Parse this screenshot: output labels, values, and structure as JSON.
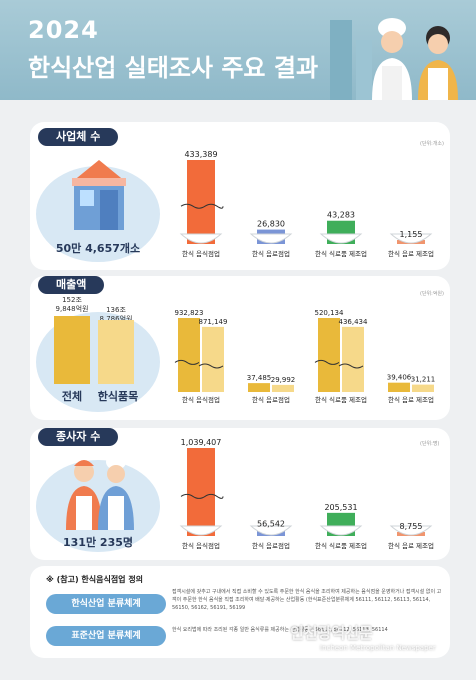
{
  "header": {
    "year": "2024",
    "title": "한식산업 실태조사 주요 결과"
  },
  "sections": [
    {
      "label": "사업체 수",
      "unit": "(단위:개소)",
      "total_label": "50만 4,657개소"
    },
    {
      "label": "매출액",
      "unit": "(단위:억원)",
      "total_label": "전체",
      "hansik_label": "한식품목",
      "total_value": "152조 9,848억원",
      "hansik_value": "136조 8,786억원"
    },
    {
      "label": "종사자 수",
      "unit": "(단위:명)",
      "total_label": "131만 235명"
    }
  ],
  "chart_data": [
    {
      "type": "bar",
      "title": "사업체 수",
      "categories": [
        "한식 음식점업",
        "한식 음료점업",
        "한식 식료품 제조업",
        "한식 음료 제조업"
      ],
      "values": [
        433389,
        26830,
        43283,
        1155
      ],
      "value_labels": [
        "433,389",
        "26,830",
        "43,283",
        "1,155"
      ],
      "colors": [
        "#f26b3a",
        "#7b95d6",
        "#3fae5a",
        "#f0956e"
      ]
    },
    {
      "type": "bar",
      "title": "매출액",
      "categories": [
        "한식 음식점업",
        "한식 음료점업",
        "한식 식료품 제조업",
        "한식 음료 제조업"
      ],
      "series": [
        {
          "values": [
            932823,
            37485,
            520134,
            39406
          ],
          "value_labels": [
            "932,823",
            "37,485",
            "520,134",
            "39,406"
          ],
          "color": "#e9b93a"
        },
        {
          "values": [
            871149,
            29992,
            436434,
            31211
          ],
          "value_labels": [
            "871,149",
            "29,992",
            "436,434",
            "31,211"
          ],
          "color": "#f6d98a"
        }
      ]
    },
    {
      "type": "bar",
      "title": "종사자 수",
      "categories": [
        "한식 음식점업",
        "한식 음료점업",
        "한식 식료품 제조업",
        "한식 음료 제조업"
      ],
      "values": [
        1039407,
        56542,
        205531,
        8755
      ],
      "value_labels": [
        "1,039,407",
        "56,542",
        "205,531",
        "8,755"
      ],
      "colors": [
        "#f26b3a",
        "#7b95d6",
        "#3fae5a",
        "#f0956e"
      ]
    }
  ],
  "notes": {
    "title": "※ (참고) 한식음식점업 정의",
    "row1_label": "한식산업 분류체계",
    "row1_text": "접객시설에 갖추고 구내에서 직접 소비할 수 있도록 주문한 한식 음식을 조리하여 제공하는 음식점을 운영하거나 접객시설 없이 고객이 주문한 한식 음식을 직접 조리하여 배달·제공하는 산업활동 (한식표준산업분류체계 56111, 56112, 56113, 56114, 56150, 56162, 56191, 56199",
    "row2_label": "표준산업 분류체계",
    "row2_text": "한식 요리법에 따라 조리된 각종 일반 음식류를 제공하는 산업활동 * 56111, 56112, 56113, 56114"
  },
  "watermark": {
    "name": "인천광역신문",
    "sub": "Incheon Metropolitan Newspaper"
  }
}
